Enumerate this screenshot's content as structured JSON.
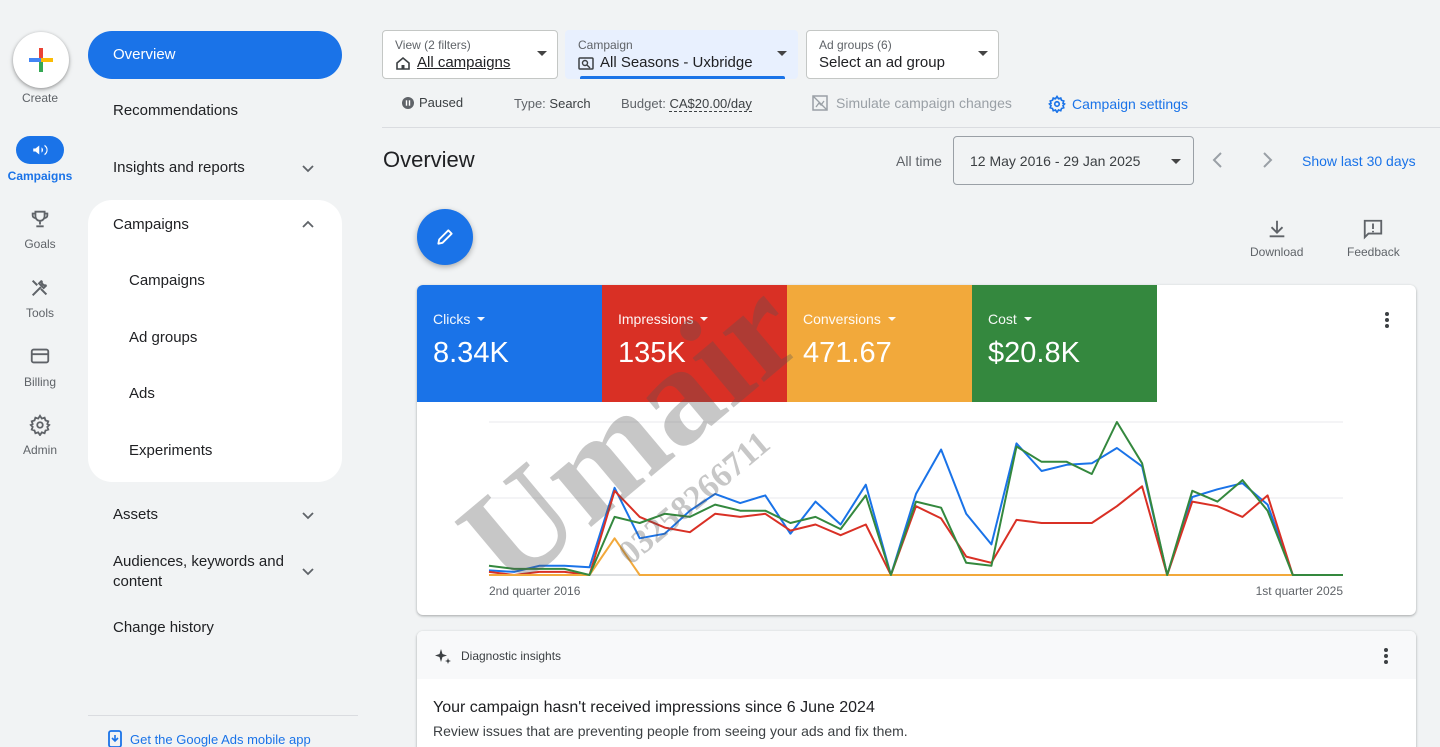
{
  "rail": {
    "create_label": "Create",
    "items": [
      {
        "label": "Campaigns",
        "icon": "megaphone-icon"
      },
      {
        "label": "Goals",
        "icon": "trophy-icon"
      },
      {
        "label": "Tools",
        "icon": "tools-icon"
      },
      {
        "label": "Billing",
        "icon": "credit-card-icon"
      },
      {
        "label": "Admin",
        "icon": "gear-icon"
      }
    ]
  },
  "nav": {
    "overview": "Overview",
    "recommendations": "Recommendations",
    "insights": "Insights and reports",
    "campaigns_group": "Campaigns",
    "sub": [
      "Campaigns",
      "Ad groups",
      "Ads",
      "Experiments"
    ],
    "assets": "Assets",
    "audiences_l1": "Audiences, keywords and",
    "audiences_l2": "content",
    "change_history": "Change history",
    "mobile_app": "Get the Google Ads mobile app"
  },
  "filters": {
    "view_label": "View (2 filters)",
    "view_value": "All campaigns",
    "campaign_label": "Campaign",
    "campaign_value": "All Seasons - Uxbridge",
    "adgroups_label": "Ad groups (6)",
    "adgroups_value": "Select an ad group"
  },
  "status": {
    "paused": "Paused",
    "type_label": "Type:",
    "type_value": "Search",
    "budget_label": "Budget:",
    "budget_value": "CA$20.00/day",
    "simulate": "Simulate campaign changes",
    "settings": "Campaign settings"
  },
  "header": {
    "title": "Overview",
    "all_time": "All time",
    "date_range": "12 May 2016 - 29 Jan 2025",
    "show_last": "Show last 30 days",
    "download": "Download",
    "feedback": "Feedback"
  },
  "metrics": [
    {
      "label": "Clicks",
      "value": "8.34K",
      "color": "#1a73e8"
    },
    {
      "label": "Impressions",
      "value": "135K",
      "color": "#d93025"
    },
    {
      "label": "Conversions",
      "value": "471.67",
      "color": "#f2a93b"
    },
    {
      "label": "Cost",
      "value": "$20.8K",
      "color": "#34883e"
    }
  ],
  "chart_data": {
    "type": "line",
    "x_start_label": "2nd quarter 2016",
    "x_end_label": "1st quarter 2025",
    "grid": true,
    "series": [
      {
        "name": "Clicks",
        "color": "#1a73e8",
        "values": [
          3,
          2,
          6,
          6,
          5,
          57,
          24,
          27,
          42,
          53,
          47,
          52,
          27,
          48,
          33,
          59,
          0,
          53,
          82,
          40,
          20,
          86,
          68,
          72,
          73,
          83,
          71,
          0,
          51,
          56,
          60,
          46,
          0,
          0,
          0
        ]
      },
      {
        "name": "Impressions",
        "color": "#d93025",
        "values": [
          2,
          0,
          2,
          2,
          0,
          55,
          38,
          31,
          28,
          40,
          38,
          40,
          29,
          33,
          26,
          33,
          0,
          45,
          37,
          12,
          8,
          36,
          34,
          34,
          34,
          45,
          58,
          0,
          48,
          45,
          38,
          52,
          0,
          0,
          0
        ]
      },
      {
        "name": "Conversions",
        "color": "#f2a93b",
        "values": [
          0,
          0,
          0,
          0,
          0,
          24,
          0,
          0,
          0,
          0,
          0,
          0,
          0,
          0,
          0,
          0,
          0,
          0,
          0,
          0,
          0,
          0,
          0,
          0,
          0,
          0,
          0,
          0,
          0,
          0,
          0,
          0,
          0,
          0,
          0
        ]
      },
      {
        "name": "Cost",
        "color": "#34883e",
        "values": [
          6,
          4,
          4,
          4,
          0,
          38,
          34,
          40,
          38,
          46,
          42,
          42,
          34,
          38,
          30,
          52,
          0,
          48,
          44,
          8,
          6,
          84,
          74,
          74,
          66,
          100,
          73,
          0,
          55,
          48,
          62,
          42,
          0,
          0,
          0
        ]
      }
    ]
  },
  "diagnostic": {
    "title": "Diagnostic insights",
    "headline": "Your campaign hasn't received impressions since 6 June 2024",
    "body": "Review issues that are preventing people from seeing your ads and fix them."
  },
  "watermark": {
    "name": "Umair",
    "number": "03258266711"
  }
}
